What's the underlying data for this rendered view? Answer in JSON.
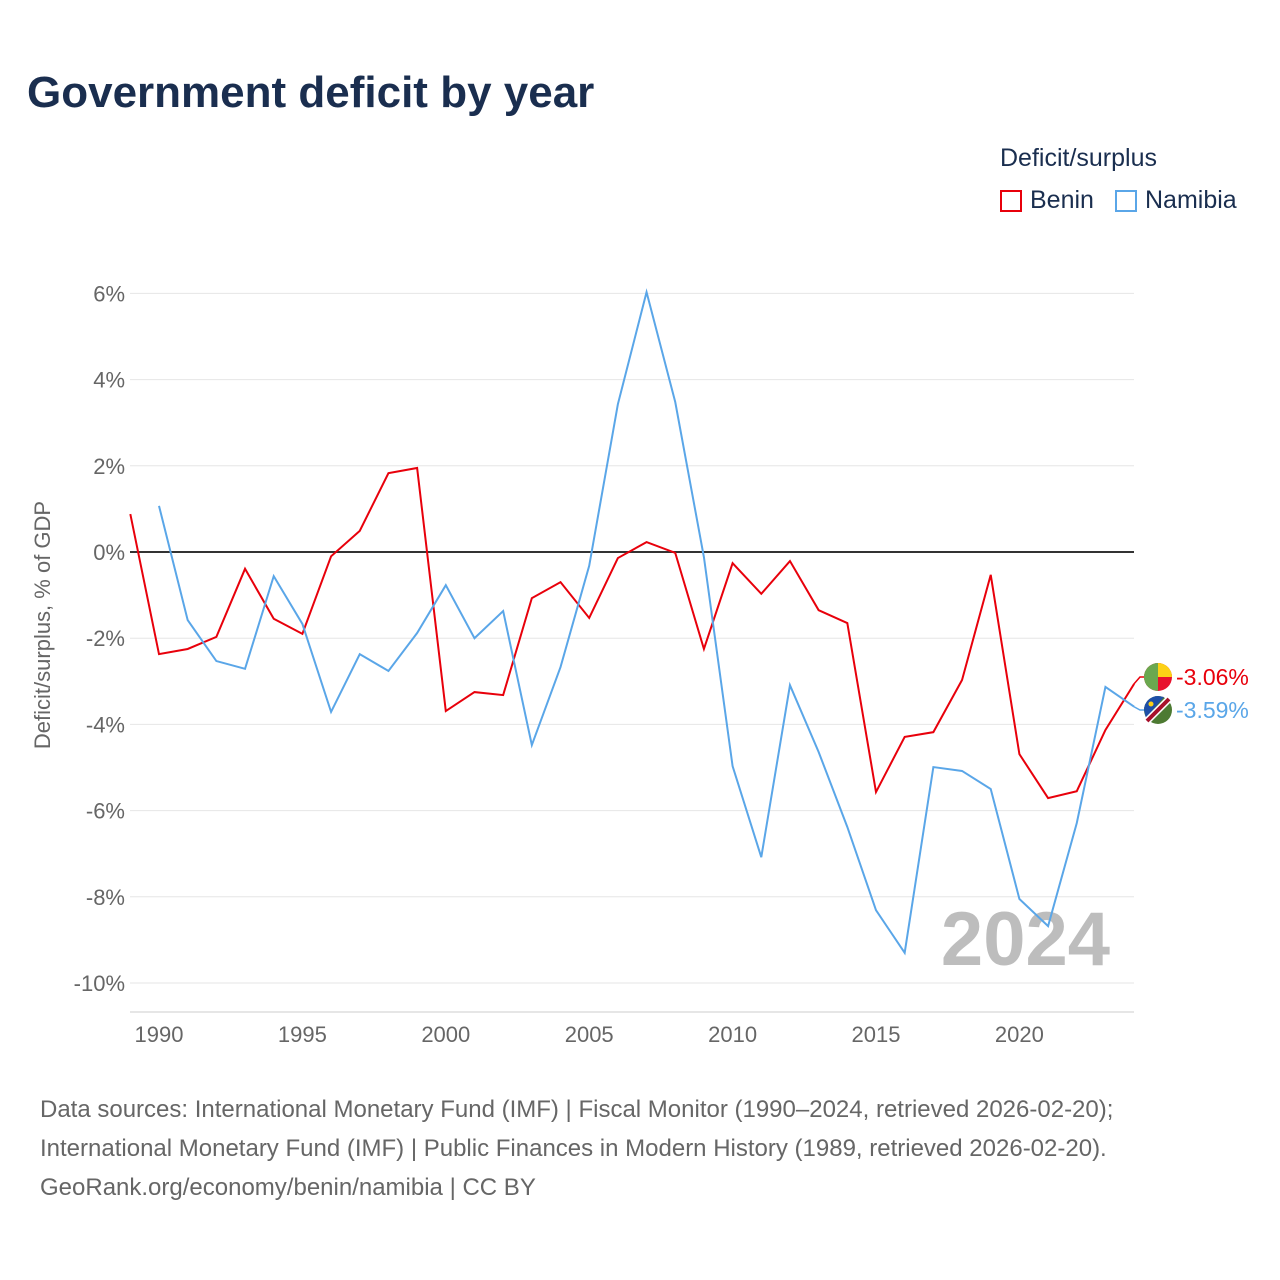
{
  "chart_data": {
    "type": "line",
    "title": "Government deficit by year",
    "ylabel": "Deficit/surplus, % of GDP",
    "xlabel": "",
    "ylim": [
      -10,
      6
    ],
    "xlim": [
      1989,
      2024
    ],
    "yticks": [
      6,
      4,
      2,
      0,
      -2,
      -4,
      -6,
      -8,
      -10
    ],
    "ytick_labels": [
      "6%",
      "4%",
      "2%",
      "0%",
      "-2%",
      "-4%",
      "-6%",
      "-8%",
      "-10%"
    ],
    "xticks": [
      1990,
      1995,
      2000,
      2005,
      2010,
      2015,
      2020
    ],
    "xtick_labels": [
      "1990",
      "1995",
      "2000",
      "2005",
      "2010",
      "2015",
      "2020"
    ],
    "legend_title": "Deficit/surplus",
    "legend_position": "top-right",
    "watermark": "2024",
    "series": [
      {
        "name": "Benin",
        "color": "#e8000b",
        "end_label": "-3.06%",
        "x": [
          1989,
          1990,
          1991,
          1992,
          1993,
          1994,
          1995,
          1996,
          1997,
          1998,
          1999,
          2000,
          2001,
          2002,
          2003,
          2004,
          2005,
          2006,
          2007,
          2008,
          2009,
          2010,
          2011,
          2012,
          2013,
          2014,
          2015,
          2016,
          2017,
          2018,
          2019,
          2020,
          2021,
          2022,
          2023,
          2024
        ],
        "values": [
          0.88,
          -2.37,
          -2.25,
          -1.97,
          -0.39,
          -1.55,
          -1.9,
          -0.1,
          0.49,
          1.83,
          1.95,
          -3.69,
          -3.25,
          -3.32,
          -1.07,
          -0.7,
          -1.53,
          -0.14,
          0.23,
          -0.02,
          -2.25,
          -0.26,
          -0.97,
          -0.21,
          -1.35,
          -1.65,
          -5.57,
          -4.29,
          -4.18,
          -2.97,
          -0.53,
          -4.69,
          -5.71,
          -5.55,
          -4.13,
          -3.06
        ]
      },
      {
        "name": "Namibia",
        "color": "#5aa6e8",
        "end_label": "-3.59%",
        "x": [
          1990,
          1991,
          1992,
          1993,
          1994,
          1995,
          1996,
          1997,
          1998,
          1999,
          2000,
          2001,
          2002,
          2003,
          2004,
          2005,
          2006,
          2007,
          2008,
          2009,
          2010,
          2011,
          2012,
          2013,
          2014,
          2015,
          2016,
          2017,
          2018,
          2019,
          2020,
          2021,
          2022,
          2023,
          2024
        ],
        "values": [
          1.07,
          -1.58,
          -2.53,
          -2.71,
          -0.56,
          -1.67,
          -3.71,
          -2.37,
          -2.76,
          -1.88,
          -0.77,
          -2.0,
          -1.37,
          -4.48,
          -2.67,
          -0.32,
          3.43,
          6.03,
          3.48,
          -0.12,
          -4.97,
          -7.08,
          -3.09,
          -4.64,
          -6.38,
          -8.31,
          -9.3,
          -4.99,
          -5.08,
          -5.5,
          -8.05,
          -8.68,
          -6.29,
          -3.13,
          -3.59
        ]
      }
    ]
  },
  "footer": {
    "line1": "Data sources: International Monetary Fund (IMF) | Fiscal Monitor (1990–2024, retrieved 2026-02-20);",
    "line2": "International Monetary Fund (IMF) | Public Finances in Modern History (1989, retrieved 2026-02-20).",
    "line3": "GeoRank.org/economy/benin/namibia | CC BY"
  }
}
